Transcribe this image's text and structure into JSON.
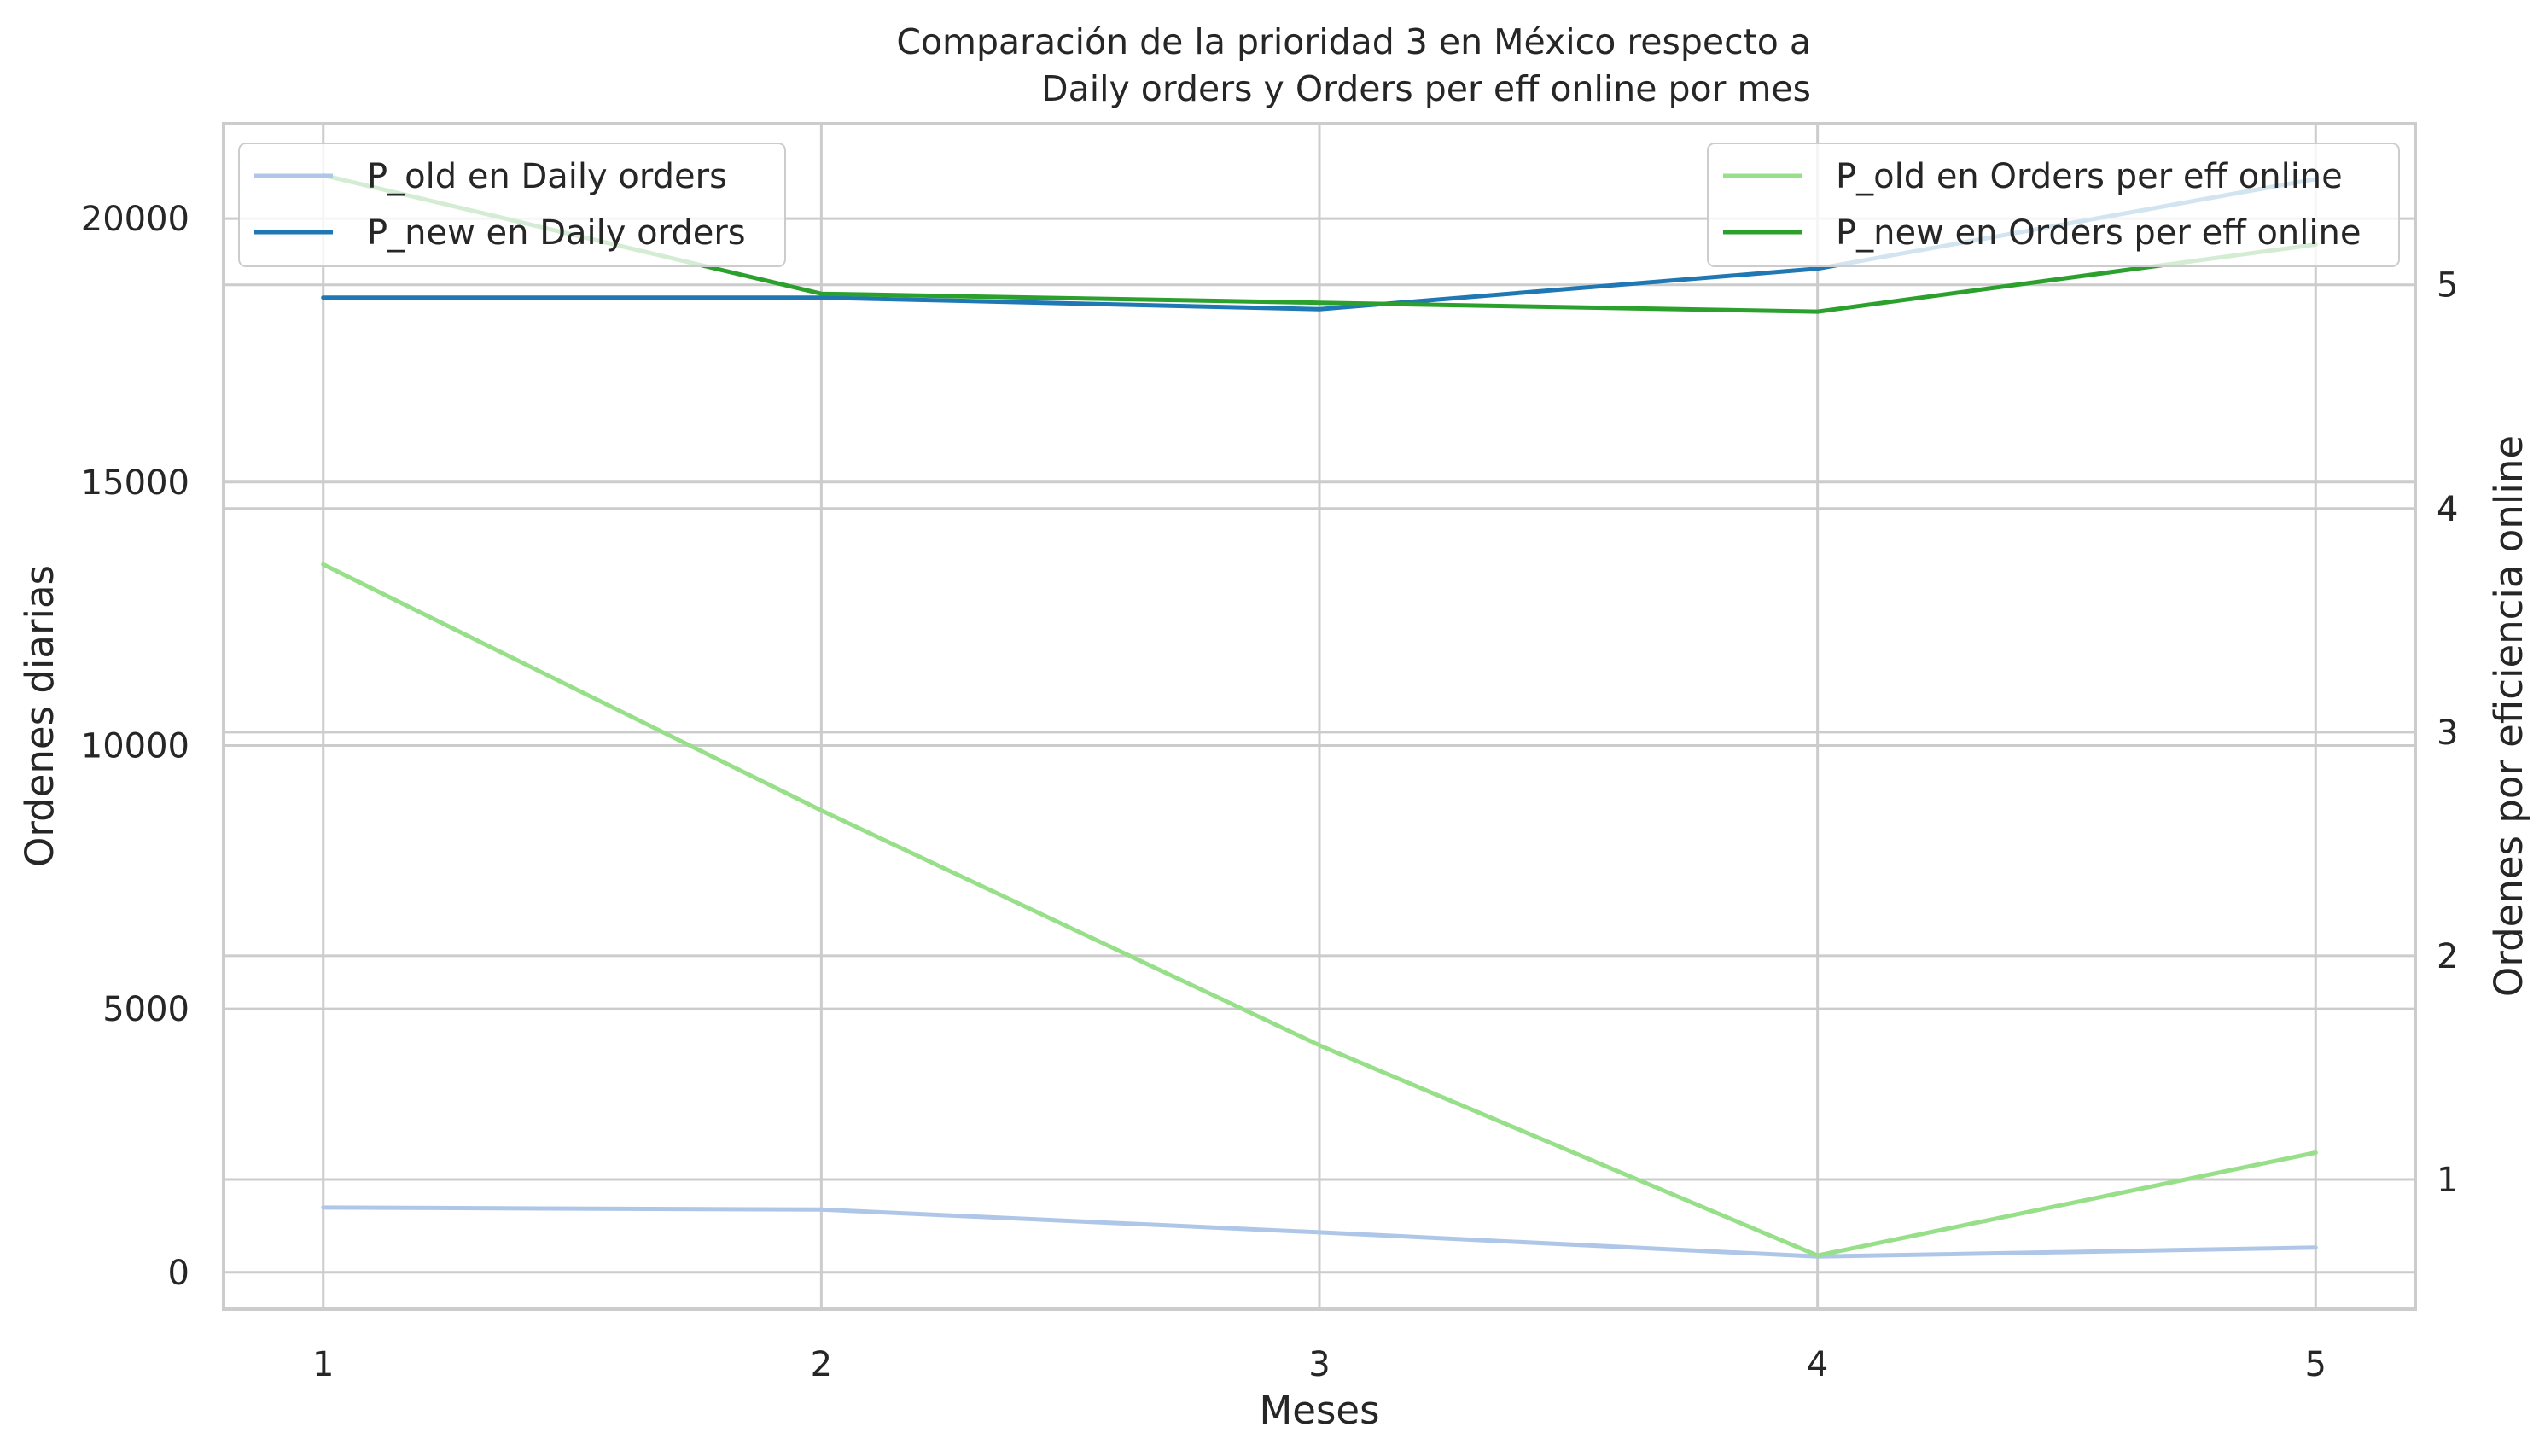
{
  "chart_data": {
    "type": "line",
    "title": [
      "Comparación de la prioridad 3 en México respecto a",
      "Daily orders y Orders per eff online por mes"
    ],
    "xlabel": "Meses",
    "ylabel_left": "Ordenes diarias",
    "ylabel_right": "Ordenes por eficiencia online",
    "x": [
      1,
      2,
      3,
      4,
      5
    ],
    "xlim": [
      0.8,
      5.2
    ],
    "ylim_left": [
      -700,
      21800
    ],
    "ylim_right": [
      0.42,
      5.72
    ],
    "yticks_left": [
      0,
      5000,
      10000,
      15000,
      20000
    ],
    "yticks_right": [
      1,
      2,
      3,
      4,
      5
    ],
    "grid": true,
    "series_left": [
      {
        "name": "P_old en Daily orders",
        "color": "#aec7e8",
        "values": [
          1230,
          1190,
          760,
          300,
          470
        ]
      },
      {
        "name": "P_new en Daily orders",
        "color": "#1f77b4",
        "values": [
          18500,
          18500,
          18280,
          19050,
          20750
        ]
      }
    ],
    "series_right": [
      {
        "name": "P_old en Orders per eff online",
        "color": "#98df8a",
        "values": [
          3.75,
          2.65,
          1.6,
          0.66,
          1.12
        ]
      },
      {
        "name": "P_new en Orders per eff online",
        "color": "#2ca02c",
        "values": [
          5.49,
          4.96,
          4.92,
          4.88,
          5.18
        ]
      }
    ],
    "legend_left": "upper-left",
    "legend_right": "upper-right"
  }
}
